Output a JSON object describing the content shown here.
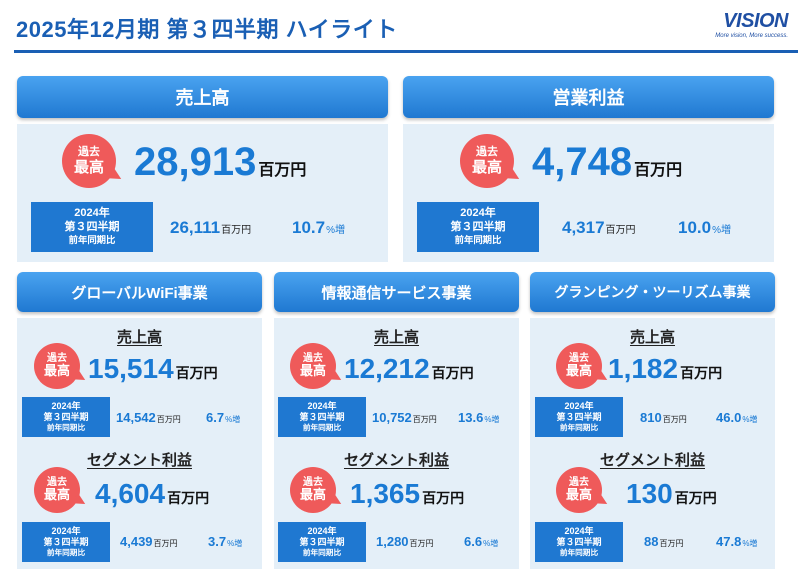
{
  "title": "2025年12月期 第３四半期 ハイライト",
  "logo": {
    "word": "VISION",
    "tagline": "More vision, More success."
  },
  "badge": {
    "line1": "過去",
    "line2": "最高"
  },
  "unit": "百万円",
  "growth_suffix": "%増",
  "comparison": {
    "year": "2024年",
    "period": "第３四半期",
    "note": "前年同期比"
  },
  "top": {
    "sales": {
      "header": "売上高",
      "value": "28,913",
      "prev": "26,111",
      "growth": "10.7"
    },
    "op": {
      "header": "営業利益",
      "value": "4,748",
      "prev": "4,317",
      "growth": "10.0"
    }
  },
  "segment_labels": {
    "sales": "売上高",
    "profit": "セグメント利益"
  },
  "segments": [
    {
      "header": "グローバルWiFi事業",
      "sales": {
        "value": "15,514",
        "prev": "14,542",
        "growth": "6.7"
      },
      "profit": {
        "value": "4,604",
        "prev": "4,439",
        "growth": "3.7"
      }
    },
    {
      "header": "情報通信サービス事業",
      "sales": {
        "value": "12,212",
        "prev": "10,752",
        "growth": "13.6"
      },
      "profit": {
        "value": "1,365",
        "prev": "1,280",
        "growth": "6.6"
      }
    },
    {
      "header": "グランピング・ツーリズム事業",
      "sales": {
        "value": "1,182",
        "prev": "810",
        "growth": "46.0"
      },
      "profit": {
        "value": "130",
        "prev": "88",
        "growth": "47.8"
      }
    }
  ]
}
